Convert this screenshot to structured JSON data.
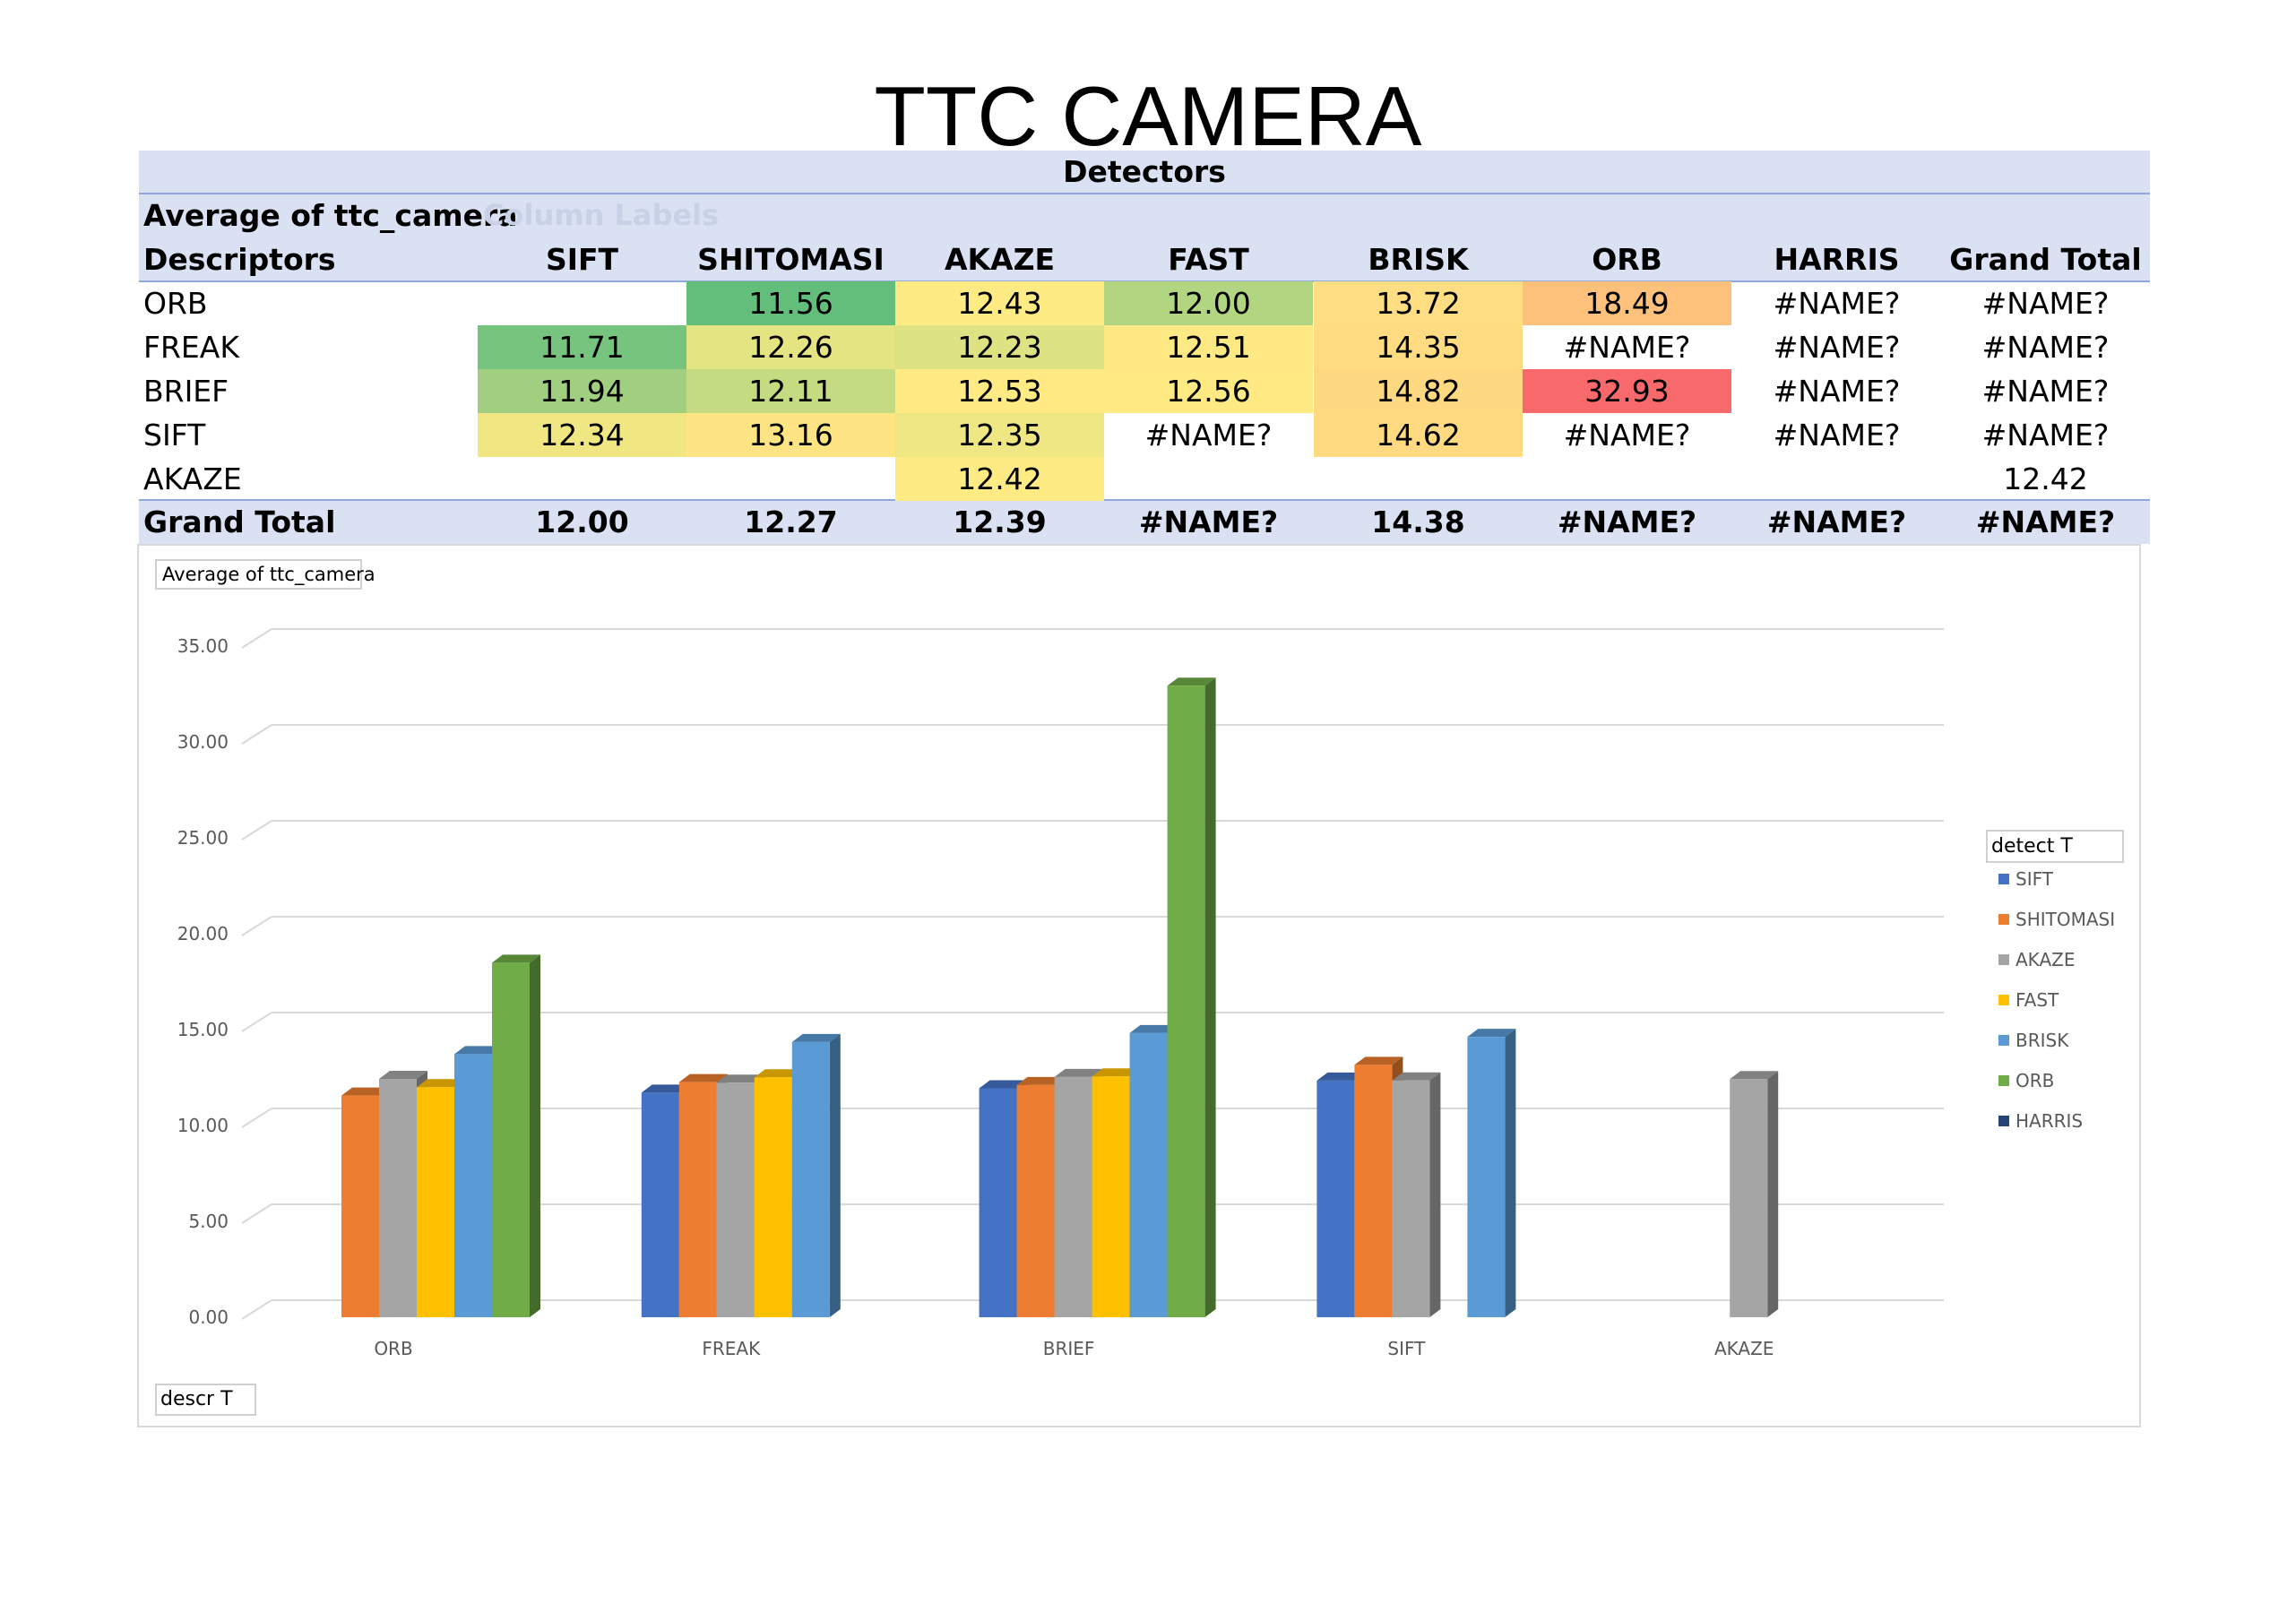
{
  "title": "TTC CAMERA",
  "pivot": {
    "header_band": "Detectors",
    "value_label": "Average of ttc_camera",
    "column_labels_ghost": "Column Labels",
    "row_header": "Descriptors",
    "columns": [
      "SIFT",
      "SHITOMASI",
      "AKAZE",
      "FAST",
      "BRISK",
      "ORB",
      "HARRIS",
      "Grand Total"
    ],
    "rows": [
      {
        "label": "ORB",
        "cells": [
          "",
          "11.56",
          "12.43",
          "12.00",
          "13.72",
          "18.49",
          "#NAME?",
          "#NAME?"
        ]
      },
      {
        "label": "FREAK",
        "cells": [
          "11.71",
          "12.26",
          "12.23",
          "12.51",
          "14.35",
          "#NAME?",
          "#NAME?",
          "#NAME?"
        ]
      },
      {
        "label": "BRIEF",
        "cells": [
          "11.94",
          "12.11",
          "12.53",
          "12.56",
          "14.82",
          "32.93",
          "#NAME?",
          "#NAME?"
        ]
      },
      {
        "label": "SIFT",
        "cells": [
          "12.34",
          "13.16",
          "12.35",
          "#NAME?",
          "14.62",
          "#NAME?",
          "#NAME?",
          "#NAME?"
        ]
      },
      {
        "label": "AKAZE",
        "cells": [
          "",
          "",
          "12.42",
          "",
          "",
          "",
          "",
          "12.42"
        ]
      }
    ],
    "grand_total": {
      "label": "Grand Total",
      "cells": [
        "12.00",
        "12.27",
        "12.39",
        "#NAME?",
        "14.38",
        "#NAME?",
        "#NAME?",
        "#NAME?"
      ]
    },
    "cell_colors": [
      [
        "",
        "#63be7b",
        "#ffeb84",
        "#b1d580",
        "#ffdd82",
        "#fdc17c",
        "",
        ""
      ],
      [
        "#76c47d",
        "#e5e483",
        "#dde283",
        "#ffe984",
        "#ffdb81",
        "",
        "",
        ""
      ],
      [
        "#a0d07f",
        "#c4db81",
        "#ffea84",
        "#ffea84",
        "#ffd981",
        "#f8696b",
        "",
        ""
      ],
      [
        "#f0e783",
        "#ffe483",
        "#efe783",
        "",
        "#ffda81",
        "",
        "",
        ""
      ],
      [
        "",
        "",
        "#ffeb84",
        "",
        "",
        "",
        "",
        ""
      ]
    ]
  },
  "chart_data": {
    "type": "bar",
    "value_field_button": "Average of ttc_camera",
    "legend_title": "detect T",
    "axis_field_button": "descr T",
    "legend_position": "right",
    "grid": true,
    "categories": [
      "ORB",
      "FREAK",
      "BRIEF",
      "SIFT",
      "AKAZE"
    ],
    "yticks": [
      "0.00",
      "5.00",
      "10.00",
      "15.00",
      "20.00",
      "25.00",
      "30.00",
      "35.00"
    ],
    "ylim": [
      0,
      35
    ],
    "series": [
      {
        "name": "SIFT",
        "color": "#4472c4",
        "values": [
          null,
          11.71,
          11.94,
          12.34,
          null
        ]
      },
      {
        "name": "SHITOMASI",
        "color": "#ed7d31",
        "values": [
          11.56,
          12.26,
          12.11,
          13.16,
          null
        ]
      },
      {
        "name": "AKAZE",
        "color": "#a5a5a5",
        "values": [
          12.43,
          12.23,
          12.53,
          12.35,
          12.42
        ]
      },
      {
        "name": "FAST",
        "color": "#ffc000",
        "values": [
          12.0,
          12.51,
          12.56,
          null,
          null
        ]
      },
      {
        "name": "BRISK",
        "color": "#5b9bd5",
        "values": [
          13.72,
          14.35,
          14.82,
          14.62,
          null
        ]
      },
      {
        "name": "ORB",
        "color": "#70ad47",
        "values": [
          18.49,
          null,
          32.93,
          null,
          null
        ]
      },
      {
        "name": "HARRIS",
        "color": "#264478",
        "values": [
          null,
          null,
          null,
          null,
          null
        ]
      }
    ]
  }
}
